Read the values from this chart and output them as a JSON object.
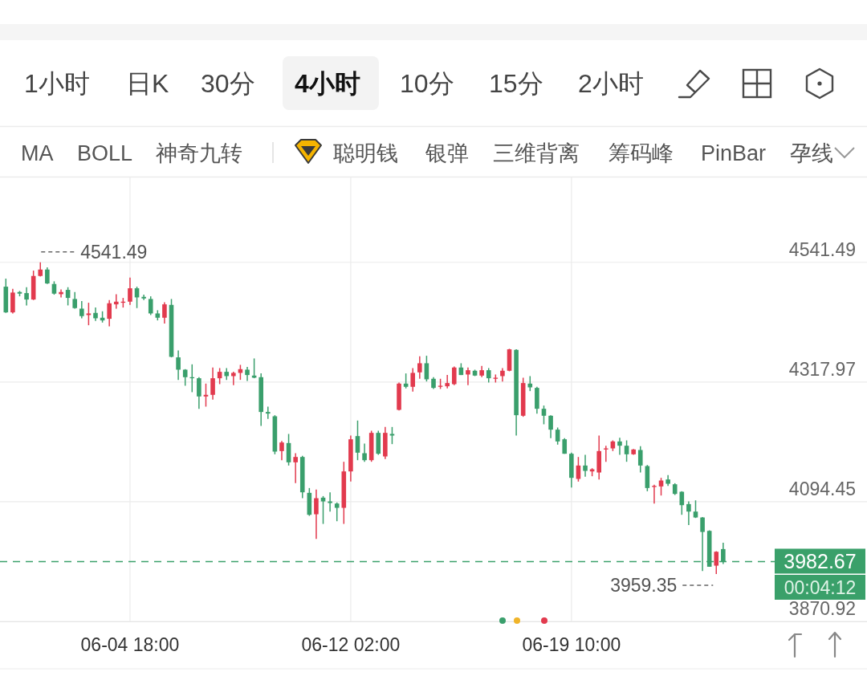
{
  "chart_data": {
    "type": "candlestick",
    "categories": [
      null,
      null,
      null,
      null,
      null,
      null,
      null,
      null,
      null,
      null,
      null,
      null,
      null,
      null,
      null,
      null,
      null,
      null,
      "06-04 18:00",
      null,
      null,
      null,
      null,
      null,
      null,
      null,
      null,
      null,
      null,
      null,
      null,
      null,
      null,
      null,
      null,
      null,
      null,
      null,
      null,
      null,
      null,
      null,
      null,
      null,
      null,
      null,
      null,
      null,
      null,
      null,
      "06-12 02:00",
      null,
      null,
      null,
      null,
      null,
      null,
      null,
      null,
      null,
      null,
      null,
      null,
      null,
      null,
      null,
      null,
      null,
      null,
      null,
      null,
      null,
      null,
      null,
      null,
      null,
      null,
      null,
      null,
      null,
      null,
      null,
      "06-19 10:00",
      null,
      null,
      null,
      null,
      null,
      null,
      null,
      null,
      null,
      null,
      null,
      null,
      null,
      null,
      null,
      null,
      null,
      null,
      null,
      null,
      null,
      null
    ],
    "ohlc": [
      [
        4496,
        4511,
        4447,
        4448
      ],
      [
        4448,
        4492,
        4446,
        4485
      ],
      [
        4486,
        4488,
        4478,
        4483
      ],
      [
        4484,
        4495,
        4461,
        4472
      ],
      [
        4472,
        4526,
        4471,
        4516
      ],
      [
        4516,
        4541.49,
        4515,
        4528
      ],
      [
        4528,
        4532,
        4501,
        4502
      ],
      [
        4501,
        4506,
        4481,
        4483
      ],
      [
        4482,
        4491,
        4476,
        4486
      ],
      [
        4490,
        4495,
        4461,
        4475
      ],
      [
        4473,
        4486,
        4455,
        4456
      ],
      [
        4455,
        4469,
        4437,
        4441
      ],
      [
        4443,
        4466,
        4424,
        4446
      ],
      [
        4447,
        4457,
        4432,
        4437
      ],
      [
        4438,
        4450,
        4429,
        4433
      ],
      [
        4436,
        4471,
        4422,
        4465
      ],
      [
        4463,
        4482,
        4455,
        4468
      ],
      [
        4466,
        4475,
        4457,
        4468
      ],
      [
        4468,
        4513,
        4462,
        4493
      ],
      [
        4493,
        4496,
        4456,
        4476
      ],
      [
        4477,
        4481,
        4471,
        4474
      ],
      [
        4473,
        4478,
        4443,
        4446
      ],
      [
        4446,
        4452,
        4433,
        4438
      ],
      [
        4438,
        4467,
        4427,
        4463
      ],
      [
        4462,
        4473,
        4364,
        4365
      ],
      [
        4364,
        4377,
        4322,
        4341
      ],
      [
        4341,
        4342,
        4311,
        4327
      ],
      [
        4327,
        4351,
        4299,
        4325
      ],
      [
        4325,
        4327,
        4268,
        4291
      ],
      [
        4291,
        4315,
        4272,
        4294
      ],
      [
        4294,
        4345,
        4285,
        4325
      ],
      [
        4325,
        4344,
        4314,
        4337
      ],
      [
        4337,
        4344,
        4322,
        4329
      ],
      [
        4329,
        4337,
        4312,
        4335
      ],
      [
        4335,
        4350,
        4322,
        4342
      ],
      [
        4341,
        4346,
        4320,
        4331
      ],
      [
        4330,
        4362,
        4325,
        4326
      ],
      [
        4327,
        4334,
        4236,
        4262
      ],
      [
        4262,
        4272,
        4249,
        4259
      ],
      [
        4254,
        4256,
        4183,
        4188
      ],
      [
        4189,
        4208,
        4172,
        4205
      ],
      [
        4204,
        4221,
        4162,
        4168
      ],
      [
        4168,
        4185,
        4129,
        4178
      ],
      [
        4178,
        4180,
        4101,
        4112
      ],
      [
        4111,
        4120,
        4068,
        4070
      ],
      [
        4071,
        4117,
        4025,
        4101
      ],
      [
        4102,
        4105,
        4053,
        4095
      ],
      [
        4095,
        4112,
        4076,
        4092
      ],
      [
        4091,
        4093,
        4058,
        4083
      ],
      [
        4083,
        4169,
        4053,
        4151
      ],
      [
        4151,
        4218,
        4132,
        4211
      ],
      [
        4217,
        4246,
        4172,
        4186
      ],
      [
        4185,
        4203,
        4169,
        4172
      ],
      [
        4172,
        4227,
        4169,
        4223
      ],
      [
        4223,
        4227,
        4182,
        4184
      ],
      [
        4179,
        4234,
        4174,
        4223
      ],
      [
        4221,
        4234,
        4202,
        4218
      ],
      [
        4266,
        4317,
        4265,
        4315
      ],
      [
        4315,
        4334,
        4306,
        4309
      ],
      [
        4309,
        4344,
        4300,
        4335
      ],
      [
        4336,
        4366,
        4324,
        4353
      ],
      [
        4353,
        4367,
        4319,
        4323
      ],
      [
        4324,
        4327,
        4305,
        4307
      ],
      [
        4309,
        4324,
        4305,
        4311
      ],
      [
        4310,
        4331,
        4306,
        4316
      ],
      [
        4314,
        4347,
        4312,
        4345
      ],
      [
        4345,
        4353,
        4331,
        4331
      ],
      [
        4332,
        4345,
        4312,
        4340
      ],
      [
        4339,
        4341,
        4329,
        4330
      ],
      [
        4330,
        4348,
        4327,
        4340
      ],
      [
        4340,
        4344,
        4317,
        4325
      ],
      [
        4324,
        4332,
        4317,
        4326
      ],
      [
        4329,
        4344,
        4319,
        4339
      ],
      [
        4339,
        4380,
        4338,
        4379
      ],
      [
        4378,
        4379,
        4218,
        4256
      ],
      [
        4255,
        4326,
        4253,
        4316
      ],
      [
        4315,
        4329,
        4301,
        4308
      ],
      [
        4307,
        4309,
        4259,
        4268
      ],
      [
        4268,
        4274,
        4239,
        4255
      ],
      [
        4255,
        4256,
        4213,
        4229
      ],
      [
        4229,
        4233,
        4201,
        4207
      ],
      [
        4211,
        4213,
        4184,
        4184
      ],
      [
        4184,
        4186,
        4121,
        4139
      ],
      [
        4137,
        4178,
        4132,
        4162
      ],
      [
        4162,
        4182,
        4141,
        4152
      ],
      [
        4151,
        4157,
        4142,
        4155
      ],
      [
        4149,
        4218,
        4136,
        4189
      ],
      [
        4192,
        4199,
        4169,
        4194
      ],
      [
        4194,
        4209,
        4189,
        4207
      ],
      [
        4207,
        4214,
        4182,
        4199
      ],
      [
        4199,
        4209,
        4169,
        4183
      ],
      [
        4183,
        4193,
        4182,
        4192
      ],
      [
        4191,
        4198,
        4149,
        4162
      ],
      [
        4161,
        4163,
        4114,
        4120
      ],
      [
        4122,
        4126,
        4091,
        4124
      ],
      [
        4123,
        4139,
        4106,
        4134
      ],
      [
        4136,
        4144,
        4124,
        4128
      ],
      [
        4127,
        4129,
        4107,
        4109
      ],
      [
        4113,
        4114,
        4070,
        4088
      ],
      [
        4090,
        4095,
        4051,
        4076
      ],
      [
        4076,
        4097,
        4064,
        4065
      ],
      [
        4065,
        4066,
        3965,
        4038
      ],
      [
        4040,
        4041,
        3973,
        3973
      ],
      [
        3975,
        4002,
        3959.35,
        4001
      ],
      [
        4006,
        4018,
        3978,
        3982.67
      ]
    ],
    "colors": [
      "#3a9f6c",
      "#e23a4e",
      "#3a9f6c",
      "#3a9f6c",
      "#e23a4e",
      "#e23a4e",
      "#3a9f6c",
      "#3a9f6c",
      "#e23a4e",
      "#3a9f6c",
      "#3a9f6c",
      "#3a9f6c",
      "#e23a4e",
      "#3a9f6c",
      "#3a9f6c",
      "#e23a4e",
      "#e23a4e",
      "#e23a4e",
      "#e23a4e",
      "#3a9f6c",
      "#3a9f6c",
      "#3a9f6c",
      "#3a9f6c",
      "#e23a4e",
      "#3a9f6c",
      "#3a9f6c",
      "#3a9f6c",
      "#3a9f6c",
      "#3a9f6c",
      "#e23a4e",
      "#e23a4e",
      "#e23a4e",
      "#3a9f6c",
      "#e23a4e",
      "#e23a4e",
      "#3a9f6c",
      "#3a9f6c",
      "#3a9f6c",
      "#3a9f6c",
      "#3a9f6c",
      "#e23a4e",
      "#3a9f6c",
      "#e23a4e",
      "#3a9f6c",
      "#3a9f6c",
      "#e23a4e",
      "#3a9f6c",
      "#3a9f6c",
      "#3a9f6c",
      "#e23a4e",
      "#e23a4e",
      "#3a9f6c",
      "#3a9f6c",
      "#e23a4e",
      "#3a9f6c",
      "#e23a4e",
      "#3a9f6c",
      "#e23a4e",
      "#3a9f6c",
      "#e23a4e",
      "#e23a4e",
      "#3a9f6c",
      "#3a9f6c",
      "#e23a4e",
      "#e23a4e",
      "#e23a4e",
      "#3a9f6c",
      "#e23a4e",
      "#3a9f6c",
      "#e23a4e",
      "#3a9f6c",
      "#e23a4e",
      "#e23a4e",
      "#e23a4e",
      "#3a9f6c",
      "#e23a4e",
      "#3a9f6c",
      "#3a9f6c",
      "#3a9f6c",
      "#3a9f6c",
      "#3a9f6c",
      "#3a9f6c",
      "#3a9f6c",
      "#e23a4e",
      "#3a9f6c",
      "#e23a4e",
      "#e23a4e",
      "#e23a4e",
      "#e23a4e",
      "#3a9f6c",
      "#3a9f6c",
      "#e23a4e",
      "#3a9f6c",
      "#3a9f6c",
      "#e23a4e",
      "#e23a4e",
      "#3a9f6c",
      "#3a9f6c",
      "#3a9f6c",
      "#3a9f6c",
      "#3a9f6c",
      "#3a9f6c",
      "#3a9f6c",
      "#e23a4e",
      "#3a9f6c"
    ],
    "ylim": [
      3870.92,
      4700
    ],
    "yticks": [
      4541.49,
      4317.97,
      4094.45,
      3870.92
    ],
    "grid": true,
    "ref_lines": [
      {
        "axis": "y",
        "value": 3982.67,
        "label": "3982.67",
        "color": "#3aa06a",
        "line_style": "dashed"
      }
    ],
    "annotations": [
      "1小时",
      "日K",
      "30分",
      "4小时",
      "10分",
      "15分",
      "2小时",
      "MA",
      "BOLL",
      "神奇九转",
      "聪明钱",
      "银弹",
      "三维背离",
      "筹码峰",
      "PinBar",
      "孕线",
      "00:04:12",
      "4541.49",
      "3959.35"
    ]
  }
}
